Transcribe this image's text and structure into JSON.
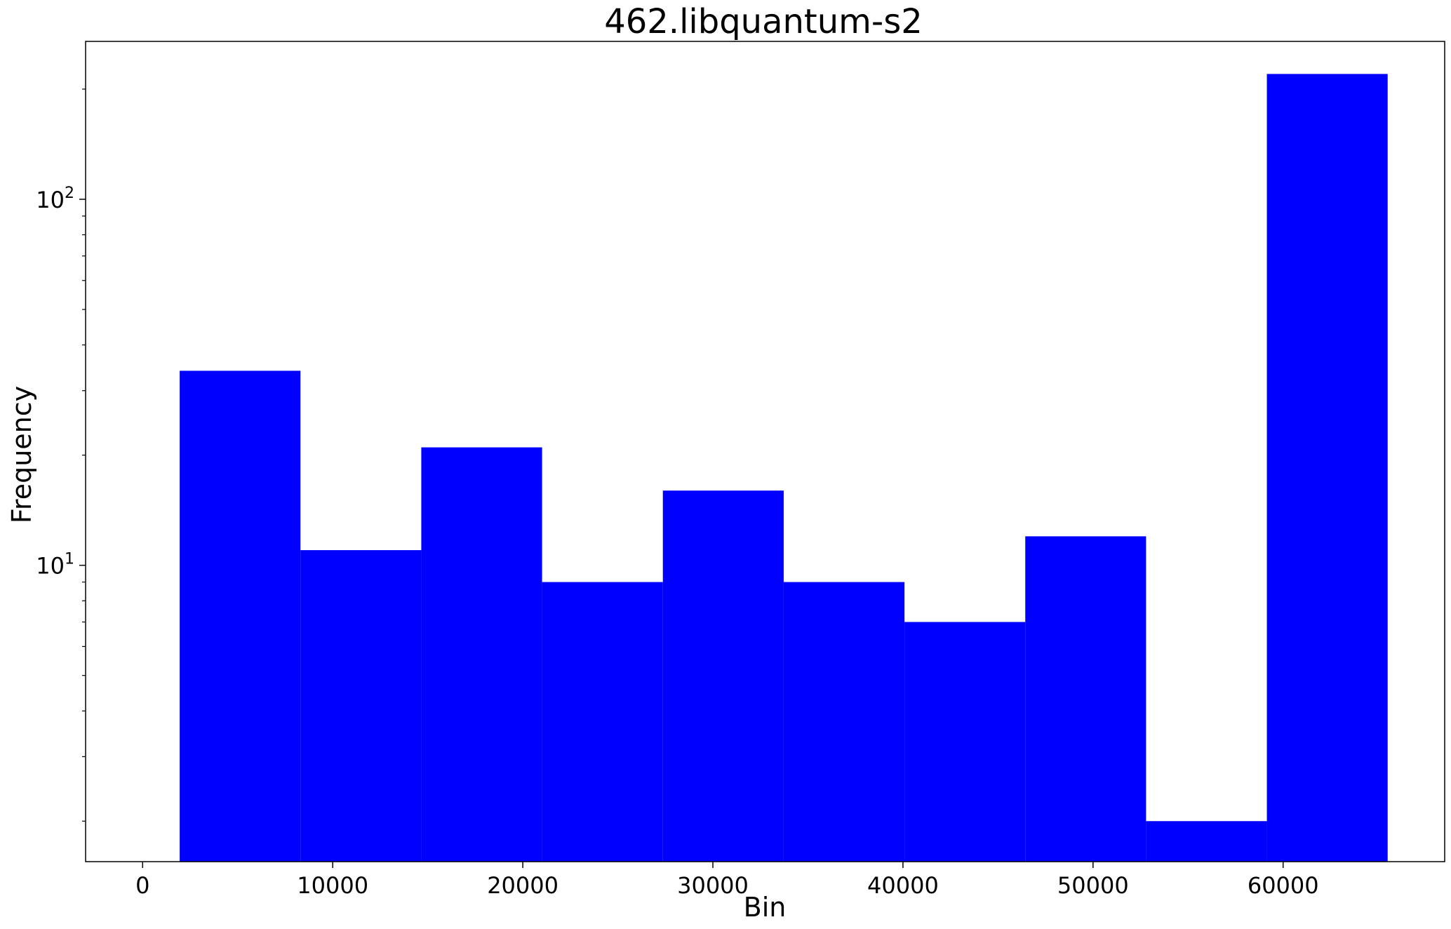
{
  "chart_data": {
    "type": "bar",
    "histogram": true,
    "title": "462.libquantum-s2",
    "xlabel": "Bin",
    "ylabel": "Frequency",
    "yscale": "log",
    "xlim": [
      -3000,
      68500
    ],
    "ylim": [
      1.55,
      270
    ],
    "bin_edges": [
      1950,
      8305,
      14660,
      21015,
      27370,
      33725,
      40080,
      46435,
      52790,
      59145,
      65500
    ],
    "values": [
      34,
      11,
      21,
      9,
      16,
      9,
      7,
      12,
      2,
      220
    ],
    "bar_color": "#0000ff",
    "x_ticks": [
      0,
      10000,
      20000,
      30000,
      40000,
      50000,
      60000
    ],
    "x_tick_labels": [
      "0",
      "10000",
      "20000",
      "30000",
      "40000",
      "50000",
      "60000"
    ],
    "y_major_ticks": [
      {
        "value": 10,
        "base": "10",
        "exp": "1"
      },
      {
        "value": 100,
        "base": "10",
        "exp": "2"
      }
    ],
    "y_minor_ticks": [
      2,
      3,
      4,
      5,
      6,
      7,
      8,
      9,
      20,
      30,
      40,
      50,
      60,
      70,
      80,
      90,
      200
    ],
    "grid": false,
    "legend": "none"
  }
}
